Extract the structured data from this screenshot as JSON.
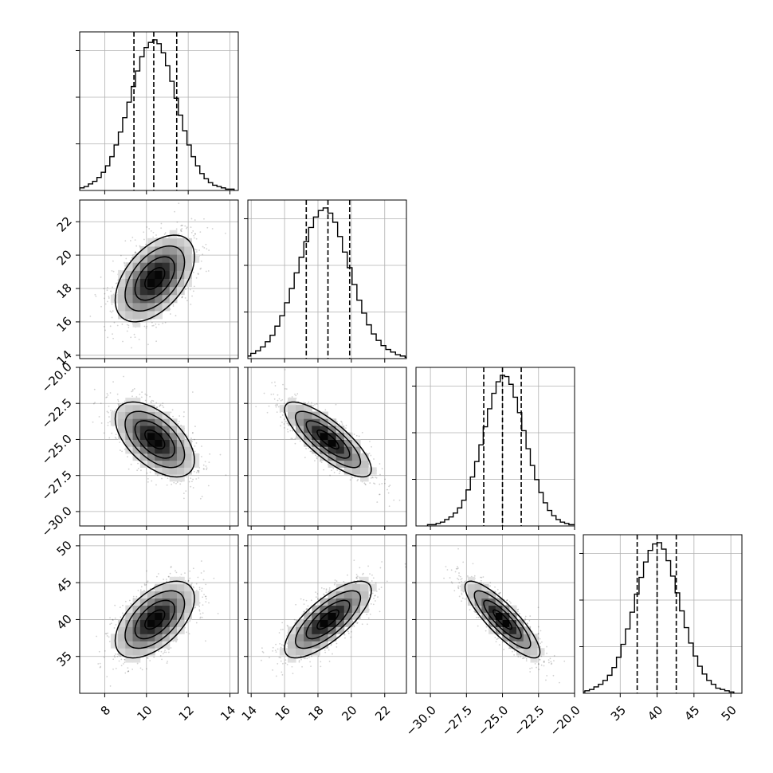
{
  "chart_data": {
    "type": "corner",
    "parameters": [
      {
        "range": [
          6.8,
          14.4
        ],
        "ticks": [
          "8",
          "10",
          "12",
          "14"
        ],
        "tick_values": [
          8,
          10,
          12,
          14
        ],
        "quantiles": [
          9.4,
          10.35,
          11.45
        ],
        "mean": 10.4,
        "sd": 0.95
      },
      {
        "range": [
          13.8,
          23.3
        ],
        "ticks": [
          "14",
          "16",
          "18",
          "20",
          "22"
        ],
        "tick_values": [
          14,
          16,
          18,
          20,
          22
        ],
        "quantiles": [
          17.3,
          18.6,
          19.9
        ],
        "mean": 18.6,
        "sd": 1.3
      },
      {
        "range": [
          -31.0,
          -20.0
        ],
        "ticks": [
          "−30.0",
          "−27.5",
          "−25.0",
          "−22.5",
          "−20.0"
        ],
        "tick_values": [
          -30,
          -27.5,
          -25,
          -22.5,
          -20
        ],
        "quantiles": [
          -26.3,
          -25.0,
          -23.7
        ],
        "mean": -25.0,
        "sd": 1.3
      },
      {
        "range": [
          30.0,
          51.5
        ],
        "ticks": [
          "35",
          "40",
          "45",
          "50"
        ],
        "tick_values": [
          35,
          40,
          45,
          50
        ],
        "quantiles": [
          37.3,
          40.0,
          42.6
        ],
        "mean": 40.0,
        "sd": 2.6
      }
    ],
    "correlations": [
      [
        1,
        0.5,
        -0.55,
        0.55
      ],
      [
        0.5,
        1,
        -0.8,
        0.75
      ],
      [
        -0.55,
        -0.8,
        1,
        -0.85
      ],
      [
        0.55,
        0.75,
        -0.85,
        1
      ]
    ],
    "histograms": [
      [
        1,
        2,
        3,
        5,
        7,
        10,
        14,
        19,
        26,
        35,
        45,
        56,
        68,
        80,
        92,
        103,
        110,
        114,
        116,
        113,
        106,
        96,
        84,
        71,
        58,
        46,
        35,
        26,
        19,
        13,
        9,
        6,
        4,
        3,
        2,
        1,
        1
      ],
      [
        1,
        2,
        4,
        6,
        9,
        13,
        18,
        25,
        33,
        43,
        54,
        66,
        78,
        90,
        101,
        109,
        114,
        116,
        112,
        105,
        94,
        82,
        70,
        57,
        45,
        35,
        26,
        19,
        14,
        10,
        7,
        5,
        3,
        2,
        1,
        1
      ],
      [
        1,
        1,
        2,
        3,
        5,
        7,
        10,
        14,
        20,
        28,
        38,
        50,
        63,
        77,
        91,
        103,
        112,
        117,
        116,
        110,
        100,
        88,
        74,
        60,
        47,
        36,
        26,
        18,
        12,
        8,
        5,
        3,
        2,
        1,
        1
      ],
      [
        1,
        2,
        3,
        5,
        7,
        10,
        14,
        20,
        28,
        38,
        50,
        63,
        77,
        90,
        102,
        111,
        116,
        117,
        112,
        103,
        91,
        78,
        64,
        51,
        39,
        29,
        21,
        15,
        10,
        7,
        4,
        3,
        2,
        1
      ]
    ],
    "contour_levels": [
      0.5,
      1.0,
      1.5,
      2.0
    ],
    "grid": true,
    "title": "",
    "xlabel": "",
    "ylabel": ""
  }
}
